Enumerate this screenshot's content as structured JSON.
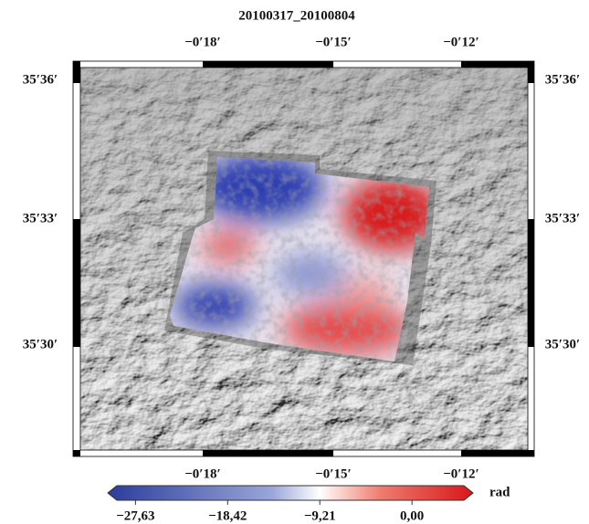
{
  "title": "20100317_20100804",
  "map": {
    "xticks": [
      "−0′18′",
      "−0′15′",
      "−0′12′"
    ],
    "yticks": [
      "35′36′",
      "35′33′",
      "35′30′"
    ]
  },
  "colorbar": {
    "lim": [
      -30.4,
      6.1
    ],
    "ticks": [
      {
        "value": -27.63,
        "label": "−27,63"
      },
      {
        "value": -18.42,
        "label": "−18,42"
      },
      {
        "value": -9.21,
        "label": "−9,21"
      },
      {
        "value": 0,
        "label": "0,00"
      }
    ],
    "unit": "rad"
  }
}
